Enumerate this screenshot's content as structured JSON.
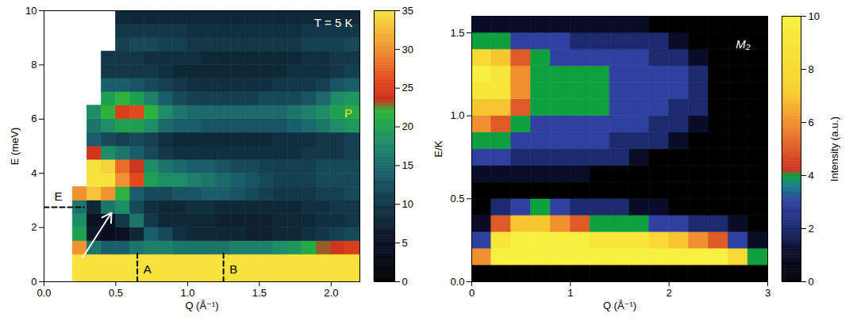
{
  "chart_data": [
    {
      "type": "heatmap",
      "x_label": "Q (Å⁻¹)",
      "y_label": "E (meV)",
      "xlim": [
        0,
        2.2
      ],
      "xticks": [
        {
          "value": 0,
          "label": "0.0"
        },
        {
          "value": 0.5,
          "label": "0.5"
        },
        {
          "value": 1,
          "label": "1.0"
        },
        {
          "value": 1.5,
          "label": "1.5"
        },
        {
          "value": 2,
          "label": "2.0"
        }
      ],
      "ylim": [
        0,
        10
      ],
      "yticks": [
        0,
        2,
        4,
        6,
        8,
        10
      ],
      "colorbar_range": [
        0,
        35
      ],
      "colorbar_ticks": [
        0,
        5,
        10,
        15,
        20,
        25,
        30,
        35
      ],
      "x": [
        0.05,
        0.15,
        0.25,
        0.35,
        0.45,
        0.55,
        0.65,
        0.75,
        0.85,
        0.95,
        1.05,
        1.15,
        1.25,
        1.35,
        1.45,
        1.55,
        1.65,
        1.75,
        1.85,
        1.95,
        2.05,
        2.15
      ],
      "y": [
        0.25,
        0.75,
        1.25,
        1.75,
        2.25,
        2.75,
        3.25,
        3.75,
        4.25,
        4.75,
        5.25,
        5.75,
        6.25,
        6.75,
        7.25,
        7.75,
        8.25,
        8.75,
        9.25,
        9.75
      ],
      "values": [
        [
          null,
          null,
          40,
          40,
          40,
          40,
          40,
          40,
          40,
          40,
          40,
          40,
          40,
          40,
          40,
          40,
          40,
          40,
          40,
          40,
          40,
          40
        ],
        [
          null,
          null,
          40,
          40,
          40,
          40,
          40,
          40,
          40,
          40,
          40,
          40,
          40,
          40,
          40,
          40,
          40,
          40,
          40,
          40,
          40,
          40
        ],
        [
          null,
          null,
          30,
          16,
          14,
          14,
          16,
          17,
          17,
          16,
          16,
          16,
          16,
          17,
          17,
          17,
          18,
          19,
          21,
          23,
          24,
          25
        ],
        [
          null,
          null,
          20,
          6,
          4,
          5,
          8,
          14,
          12,
          9,
          8,
          8,
          8,
          8,
          7,
          7,
          8,
          8,
          9,
          10,
          11,
          12
        ],
        [
          null,
          null,
          18,
          5,
          4,
          10,
          16,
          10,
          8,
          8,
          8,
          8,
          7,
          7,
          7,
          7,
          8,
          8,
          8,
          9,
          9,
          10
        ],
        [
          null,
          null,
          16,
          8,
          16,
          18,
          12,
          9,
          8,
          8,
          9,
          9,
          8,
          8,
          8,
          8,
          8,
          8,
          9,
          9,
          10,
          10
        ],
        [
          null,
          null,
          30,
          33,
          30,
          22,
          14,
          12,
          12,
          13,
          13,
          14,
          14,
          13,
          12,
          11,
          10,
          10,
          10,
          11,
          11,
          12
        ],
        [
          null,
          null,
          null,
          36,
          36,
          30,
          26,
          20,
          18,
          18,
          17,
          16,
          15,
          14,
          13,
          12,
          11,
          11,
          11,
          12,
          12,
          12
        ],
        [
          null,
          null,
          null,
          36,
          34,
          28,
          24,
          18,
          16,
          15,
          14,
          14,
          13,
          12,
          12,
          11,
          11,
          11,
          11,
          12,
          12,
          12
        ],
        [
          null,
          null,
          null,
          24,
          18,
          16,
          14,
          12,
          10,
          9,
          9,
          9,
          9,
          9,
          9,
          9,
          9,
          9,
          10,
          10,
          10,
          11
        ],
        [
          null,
          null,
          null,
          14,
          12,
          11,
          12,
          11,
          9,
          8,
          8,
          8,
          8,
          8,
          8,
          8,
          9,
          9,
          9,
          10,
          10,
          11
        ],
        [
          null,
          null,
          null,
          16,
          18,
          20,
          20,
          18,
          15,
          14,
          14,
          13,
          13,
          13,
          13,
          13,
          13,
          14,
          15,
          16,
          18,
          19
        ],
        [
          null,
          null,
          null,
          18,
          22,
          25,
          26,
          22,
          18,
          16,
          15,
          15,
          15,
          15,
          15,
          15,
          15,
          16,
          17,
          18,
          20,
          21
        ],
        [
          null,
          null,
          null,
          null,
          20,
          22,
          20,
          17,
          14,
          12,
          11,
          11,
          11,
          11,
          11,
          12,
          12,
          12,
          13,
          15,
          18,
          19
        ],
        [
          null,
          null,
          null,
          null,
          14,
          14,
          13,
          12,
          11,
          10,
          9,
          9,
          9,
          9,
          9,
          9,
          10,
          10,
          10,
          11,
          13,
          14
        ],
        [
          null,
          null,
          null,
          null,
          10,
          10,
          10,
          10,
          9,
          8,
          8,
          8,
          8,
          8,
          8,
          8,
          8,
          9,
          9,
          9,
          10,
          11
        ],
        [
          null,
          null,
          null,
          null,
          10,
          10,
          10,
          9,
          9,
          9,
          9,
          8,
          8,
          8,
          8,
          8,
          8,
          8,
          9,
          9,
          10,
          10
        ],
        [
          null,
          null,
          null,
          null,
          null,
          11,
          12,
          12,
          11,
          11,
          10,
          10,
          10,
          10,
          10,
          10,
          10,
          10,
          11,
          11,
          11,
          12
        ],
        [
          null,
          null,
          null,
          null,
          null,
          10,
          10,
          10,
          10,
          10,
          9,
          9,
          9,
          9,
          9,
          9,
          9,
          9,
          10,
          10,
          10,
          10
        ],
        [
          null,
          null,
          null,
          null,
          null,
          8,
          8,
          8,
          8,
          8,
          8,
          8,
          8,
          8,
          8,
          8,
          8,
          8,
          8,
          8,
          8,
          8
        ]
      ],
      "annotations": [
        {
          "text": "T = 5 K",
          "x": 2.15,
          "y": 9.55,
          "color": "#ffffff"
        },
        {
          "text": "E",
          "x": 0.1,
          "y": 3.15,
          "color": "#000000"
        },
        {
          "text": "A",
          "x": 0.72,
          "y": 0.45,
          "color": "#000000"
        },
        {
          "text": "B",
          "x": 1.32,
          "y": 0.45,
          "color": "#000000"
        },
        {
          "text": "P",
          "x": 2.12,
          "y": 6.2,
          "color": "#f5e23c"
        }
      ],
      "reference_lines": [
        {
          "x": [
            0,
            0.28
          ],
          "y": [
            2.75,
            2.75
          ]
        },
        {
          "x": [
            0.65,
            0.65
          ],
          "y": [
            0,
            1.1
          ]
        },
        {
          "x": [
            1.25,
            1.25
          ],
          "y": [
            0,
            1.1
          ]
        }
      ],
      "arrows": [
        {
          "x1": 0.27,
          "y1": 0.9,
          "x2": 0.47,
          "y2": 2.55,
          "color": "#ffffff"
        }
      ]
    },
    {
      "type": "heatmap",
      "x_label": "Q (Å⁻¹)",
      "y_label": "E/K",
      "xlim": [
        0,
        3
      ],
      "xticks": [
        0,
        1,
        2,
        3
      ],
      "ylim": [
        0,
        1.6
      ],
      "yticks": [
        {
          "value": 0,
          "label": "0.0"
        },
        {
          "value": 0.5,
          "label": "0.5"
        },
        {
          "value": 1,
          "label": "1.0"
        },
        {
          "value": 1.5,
          "label": "1.5"
        }
      ],
      "colorbar_range": [
        0,
        10
      ],
      "colorbar_ticks": [
        0,
        2,
        4,
        6,
        8,
        10
      ],
      "colorbar_label": "Intensity (a.u.)",
      "x": [
        0.1,
        0.3,
        0.5,
        0.7,
        0.9,
        1.1,
        1.3,
        1.5,
        1.7,
        1.9,
        2.1,
        2.3,
        2.5,
        2.7,
        2.9
      ],
      "y": [
        0.05,
        0.15,
        0.25,
        0.35,
        0.45,
        0.55,
        0.65,
        0.75,
        0.85,
        0.95,
        1.05,
        1.15,
        1.25,
        1.35,
        1.45,
        1.55
      ],
      "values": [
        [
          0,
          0,
          0,
          0,
          0,
          0,
          0,
          0,
          0,
          0,
          0,
          0,
          0,
          0,
          0
        ],
        [
          6,
          10,
          10,
          10,
          10,
          10,
          10,
          10,
          10,
          10,
          10,
          10,
          10,
          8,
          4
        ],
        [
          3,
          9,
          10,
          10,
          10,
          10,
          9,
          9,
          9,
          8,
          7,
          6,
          5,
          3,
          1
        ],
        [
          1,
          5,
          7,
          7,
          6,
          5,
          4,
          4,
          4,
          3,
          3,
          2,
          2,
          1,
          0
        ],
        [
          0,
          2,
          3,
          4,
          3,
          2,
          2,
          2,
          1,
          1,
          0,
          0,
          0,
          0,
          0
        ],
        [
          0,
          0,
          0,
          0,
          0,
          0,
          0,
          0,
          0,
          0,
          0,
          0,
          0,
          0,
          0
        ],
        [
          1,
          1,
          1,
          1,
          1,
          1,
          0,
          0,
          0,
          0,
          0,
          0,
          0,
          0,
          0
        ],
        [
          3,
          3,
          2,
          2,
          2,
          2,
          2,
          2,
          1,
          0,
          0,
          0,
          0,
          0,
          0
        ],
        [
          4,
          4,
          3,
          3,
          3,
          3,
          3,
          2,
          2,
          2,
          1,
          0,
          0,
          0,
          0
        ],
        [
          6,
          5,
          4,
          3,
          3,
          3,
          3,
          3,
          3,
          2,
          2,
          1,
          0,
          0,
          0
        ],
        [
          7,
          7,
          5,
          4,
          4,
          4,
          4,
          3,
          3,
          3,
          2,
          2,
          0,
          0,
          0
        ],
        [
          9,
          9,
          6,
          4,
          4,
          4,
          4,
          3,
          3,
          3,
          3,
          2,
          0,
          0,
          0
        ],
        [
          10,
          9,
          6,
          4,
          4,
          4,
          4,
          3,
          3,
          3,
          3,
          2,
          0,
          0,
          0
        ],
        [
          8,
          7,
          5,
          4,
          3,
          3,
          3,
          3,
          3,
          2,
          2,
          1,
          0,
          0,
          0
        ],
        [
          4,
          4,
          3,
          3,
          3,
          2,
          2,
          2,
          2,
          2,
          1,
          0,
          0,
          0,
          0
        ],
        [
          1,
          1,
          1,
          1,
          1,
          1,
          1,
          1,
          1,
          0,
          0,
          0,
          0,
          0,
          0
        ]
      ],
      "annotations": [
        {
          "text": "M₂",
          "x": 2.75,
          "y": 1.43,
          "color": "#ffffff"
        }
      ]
    }
  ]
}
